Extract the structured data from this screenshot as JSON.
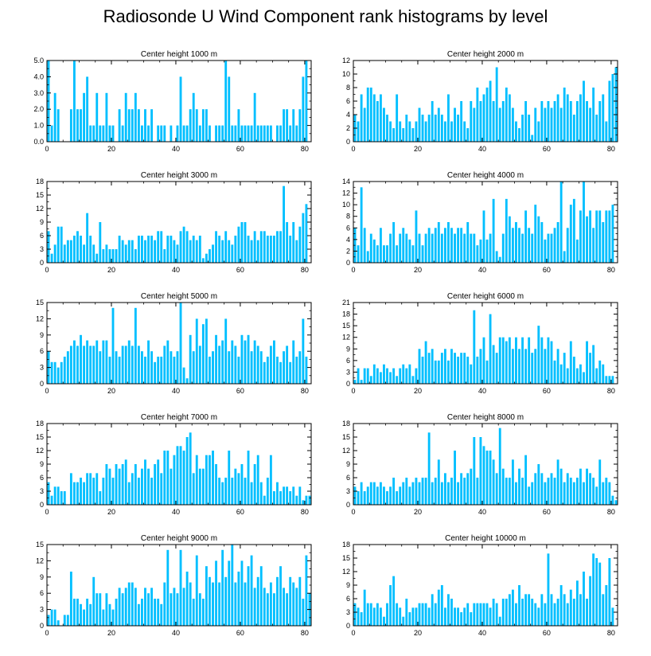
{
  "title": "Radiosonde U Wind Component rank histograms by level",
  "bar_color": "#00bfff",
  "chart_data": [
    {
      "type": "bar",
      "title": "Center height 1000 m",
      "xlabel": "",
      "ylabel": "",
      "xlim": [
        0,
        82
      ],
      "ylim": [
        0,
        5
      ],
      "xticks": [
        "0",
        "20",
        "40",
        "60",
        "80"
      ],
      "yticks": [
        "0.0",
        "1.0",
        "2.0",
        "3.0",
        "4.0",
        "5.0"
      ],
      "values": [
        5,
        1,
        3,
        2,
        0,
        0,
        0,
        2,
        5,
        2,
        2,
        3,
        4,
        1,
        1,
        3,
        1,
        1,
        3,
        1,
        1,
        0,
        2,
        1,
        3,
        2,
        2,
        3,
        2,
        1,
        2,
        1,
        2,
        0,
        1,
        1,
        1,
        0,
        1,
        0,
        1,
        4,
        1,
        1,
        2,
        3,
        2,
        1,
        2,
        2,
        1,
        0,
        1,
        1,
        1,
        5,
        4,
        1,
        1,
        2,
        1,
        1,
        1,
        1,
        3,
        1,
        1,
        1,
        1,
        1,
        0,
        1,
        1,
        2,
        2,
        1,
        2,
        1,
        2,
        4,
        5
      ]
    },
    {
      "type": "bar",
      "title": "Center height 2000 m",
      "xlabel": "",
      "ylabel": "",
      "xlim": [
        0,
        82
      ],
      "ylim": [
        0,
        12
      ],
      "xticks": [
        "0",
        "20",
        "40",
        "60",
        "80"
      ],
      "yticks": [
        "0",
        "2",
        "4",
        "6",
        "8",
        "10",
        "12"
      ],
      "values": [
        4,
        3,
        7,
        5,
        8,
        8,
        7,
        6,
        7,
        5,
        4,
        3,
        2,
        7,
        3,
        2,
        4,
        3,
        2,
        3,
        5,
        4,
        3,
        4,
        6,
        4,
        5,
        4,
        3,
        7,
        3,
        5,
        4,
        6,
        3,
        2,
        6,
        5,
        8,
        6,
        7,
        8,
        9,
        6,
        11,
        5,
        6,
        8,
        7,
        5,
        3,
        2,
        4,
        6,
        4,
        1,
        5,
        3,
        6,
        5,
        6,
        5,
        6,
        7,
        5,
        8,
        7,
        6,
        4,
        6,
        7,
        9,
        6,
        5,
        8,
        4,
        6,
        7,
        3,
        9,
        10,
        11
      ]
    },
    {
      "type": "bar",
      "title": "Center height 3000 m",
      "xlabel": "",
      "ylabel": "",
      "xlim": [
        0,
        82
      ],
      "ylim": [
        0,
        18
      ],
      "xticks": [
        "0",
        "20",
        "40",
        "60",
        "80"
      ],
      "yticks": [
        "0",
        "3",
        "6",
        "9",
        "12",
        "15",
        "18"
      ],
      "values": [
        7,
        2,
        4,
        8,
        8,
        4,
        5,
        5,
        6,
        7,
        6,
        4,
        11,
        6,
        4,
        2,
        9,
        3,
        4,
        3,
        3,
        3,
        6,
        5,
        4,
        5,
        5,
        3,
        6,
        6,
        5,
        6,
        6,
        5,
        7,
        7,
        3,
        6,
        6,
        5,
        4,
        7,
        8,
        7,
        5,
        6,
        5,
        6,
        1,
        2,
        3,
        4,
        7,
        6,
        5,
        7,
        5,
        4,
        6,
        8,
        9,
        9,
        6,
        5,
        7,
        5,
        7,
        7,
        6,
        6,
        6,
        7,
        7,
        17,
        9,
        6,
        9,
        5,
        8,
        11,
        13
      ]
    },
    {
      "type": "bar",
      "title": "Center height 4000 m",
      "xlabel": "",
      "ylabel": "",
      "xlim": [
        0,
        82
      ],
      "ylim": [
        0,
        14
      ],
      "xticks": [
        "0",
        "20",
        "40",
        "60",
        "80"
      ],
      "yticks": [
        "0",
        "2",
        "4",
        "6",
        "8",
        "10",
        "12",
        "14"
      ],
      "values": [
        6,
        3,
        13,
        6,
        2,
        5,
        4,
        3,
        6,
        3,
        3,
        5,
        7,
        3,
        5,
        6,
        5,
        4,
        3,
        9,
        5,
        3,
        5,
        6,
        5,
        6,
        7,
        5,
        6,
        7,
        6,
        5,
        6,
        6,
        5,
        7,
        5,
        5,
        3,
        4,
        9,
        4,
        5,
        11,
        2,
        1,
        5,
        11,
        8,
        6,
        7,
        6,
        5,
        9,
        6,
        5,
        10,
        8,
        7,
        4,
        5,
        5,
        6,
        7,
        14,
        2,
        6,
        10,
        11,
        4,
        9,
        14,
        8,
        9,
        6,
        9,
        9,
        7,
        9,
        9,
        10
      ]
    },
    {
      "type": "bar",
      "title": "Center height 5000 m",
      "xlabel": "",
      "ylabel": "",
      "xlim": [
        0,
        82
      ],
      "ylim": [
        0,
        15
      ],
      "xticks": [
        "0",
        "20",
        "40",
        "60",
        "80"
      ],
      "yticks": [
        "0",
        "3",
        "6",
        "9",
        "12",
        "15"
      ],
      "values": [
        6,
        4,
        4,
        3,
        4,
        5,
        6,
        7,
        8,
        7,
        9,
        7,
        8,
        7,
        7,
        8,
        6,
        8,
        8,
        5,
        14,
        6,
        5,
        7,
        7,
        8,
        7,
        14,
        7,
        6,
        5,
        8,
        6,
        4,
        5,
        5,
        7,
        8,
        6,
        5,
        6,
        15,
        3,
        1,
        9,
        6,
        12,
        7,
        11,
        12,
        5,
        6,
        9,
        7,
        8,
        12,
        6,
        8,
        7,
        5,
        9,
        8,
        9,
        6,
        8,
        7,
        6,
        4,
        5,
        7,
        8,
        5,
        4,
        6,
        7,
        4,
        8,
        5,
        6,
        12,
        5
      ]
    },
    {
      "type": "bar",
      "title": "Center height 6000 m",
      "xlabel": "",
      "ylabel": "",
      "xlim": [
        0,
        82
      ],
      "ylim": [
        0,
        21
      ],
      "xticks": [
        "0",
        "20",
        "40",
        "60",
        "80"
      ],
      "yticks": [
        "0",
        "3",
        "6",
        "9",
        "12",
        "15",
        "18",
        "21"
      ],
      "values": [
        1,
        4,
        1,
        4,
        4,
        2,
        5,
        4,
        3,
        5,
        4,
        3,
        4,
        2,
        4,
        5,
        4,
        5,
        2,
        4,
        9,
        7,
        11,
        8,
        9,
        6,
        6,
        8,
        9,
        6,
        9,
        8,
        7,
        8,
        8,
        7,
        5,
        19,
        7,
        9,
        12,
        6,
        18,
        10,
        8,
        12,
        12,
        11,
        12,
        9,
        12,
        9,
        12,
        9,
        12,
        8,
        9,
        15,
        12,
        9,
        12,
        11,
        6,
        9,
        5,
        8,
        4,
        11,
        7,
        4,
        5,
        3,
        11,
        8,
        10,
        4,
        6,
        5,
        2,
        2,
        2
      ]
    },
    {
      "type": "bar",
      "title": "Center height 7000 m",
      "xlabel": "",
      "ylabel": "",
      "xlim": [
        0,
        82
      ],
      "ylim": [
        0,
        18
      ],
      "xticks": [
        "0",
        "20",
        "40",
        "60",
        "80"
      ],
      "yticks": [
        "0",
        "3",
        "6",
        "9",
        "12",
        "15",
        "18"
      ],
      "values": [
        5,
        2,
        4,
        4,
        3,
        3,
        0,
        7,
        5,
        5,
        6,
        5,
        7,
        7,
        6,
        7,
        3,
        6,
        9,
        8,
        6,
        9,
        8,
        9,
        10,
        5,
        7,
        9,
        6,
        8,
        10,
        8,
        6,
        9,
        10,
        7,
        12,
        12,
        8,
        11,
        13,
        13,
        12,
        15,
        16,
        7,
        11,
        8,
        8,
        11,
        11,
        12,
        9,
        6,
        5,
        6,
        12,
        6,
        8,
        7,
        9,
        6,
        12,
        5,
        9,
        11,
        5,
        2,
        6,
        11,
        3,
        5,
        3,
        4,
        4,
        3,
        4,
        2,
        4,
        1,
        2,
        2
      ]
    },
    {
      "type": "bar",
      "title": "Center height 8000 m",
      "xlabel": "",
      "ylabel": "",
      "xlim": [
        0,
        82
      ],
      "ylim": [
        0,
        18
      ],
      "xticks": [
        "0",
        "20",
        "40",
        "60",
        "80"
      ],
      "yticks": [
        "0",
        "3",
        "6",
        "9",
        "12",
        "15",
        "18"
      ],
      "values": [
        4,
        3,
        5,
        3,
        4,
        5,
        5,
        4,
        5,
        4,
        3,
        4,
        6,
        3,
        4,
        5,
        6,
        4,
        5,
        6,
        5,
        6,
        6,
        16,
        5,
        6,
        10,
        5,
        7,
        5,
        6,
        12,
        5,
        7,
        6,
        7,
        8,
        15,
        6,
        15,
        13,
        12,
        12,
        10,
        7,
        17,
        8,
        6,
        6,
        10,
        5,
        8,
        6,
        11,
        4,
        5,
        7,
        9,
        7,
        5,
        6,
        7,
        6,
        10,
        8,
        5,
        7,
        6,
        5,
        6,
        8,
        5,
        8,
        7,
        6,
        4,
        10,
        5,
        6,
        5,
        2,
        1
      ]
    },
    {
      "type": "bar",
      "title": "Center height 9000 m",
      "xlabel": "",
      "ylabel": "",
      "xlim": [
        0,
        82
      ],
      "ylim": [
        0,
        15
      ],
      "xticks": [
        "0",
        "20",
        "40",
        "60",
        "80"
      ],
      "yticks": [
        "0",
        "3",
        "6",
        "9",
        "12",
        "15"
      ],
      "values": [
        2,
        3,
        3,
        1,
        0,
        2,
        2,
        10,
        5,
        5,
        4,
        3,
        5,
        4,
        9,
        6,
        6,
        3,
        6,
        4,
        3,
        5,
        7,
        6,
        7,
        8,
        8,
        7,
        4,
        5,
        7,
        6,
        7,
        5,
        5,
        4,
        8,
        14,
        6,
        7,
        6,
        14,
        7,
        10,
        8,
        5,
        13,
        6,
        5,
        11,
        9,
        8,
        12,
        8,
        14,
        9,
        12,
        15,
        8,
        10,
        12,
        8,
        11,
        13,
        7,
        9,
        11,
        7,
        6,
        8,
        6,
        9,
        11,
        7,
        6,
        9,
        8,
        7,
        9,
        5,
        13,
        6
      ]
    },
    {
      "type": "bar",
      "title": "Center height 10000 m",
      "xlabel": "",
      "ylabel": "",
      "xlim": [
        0,
        82
      ],
      "ylim": [
        0,
        18
      ],
      "xticks": [
        "0",
        "20",
        "40",
        "60",
        "80"
      ],
      "yticks": [
        "0",
        "3",
        "6",
        "9",
        "12",
        "15",
        "18"
      ],
      "values": [
        5,
        4,
        3,
        8,
        5,
        5,
        4,
        5,
        4,
        2,
        5,
        9,
        11,
        5,
        4,
        2,
        6,
        3,
        4,
        4,
        5,
        5,
        5,
        4,
        7,
        5,
        8,
        9,
        4,
        7,
        6,
        4,
        4,
        3,
        4,
        5,
        3,
        5,
        5,
        5,
        5,
        5,
        4,
        6,
        5,
        2,
        6,
        6,
        7,
        8,
        5,
        9,
        6,
        7,
        7,
        6,
        5,
        4,
        7,
        5,
        16,
        7,
        5,
        6,
        9,
        7,
        5,
        8,
        6,
        10,
        7,
        12,
        6,
        11,
        16,
        15,
        14,
        7,
        9,
        15,
        4
      ]
    }
  ]
}
